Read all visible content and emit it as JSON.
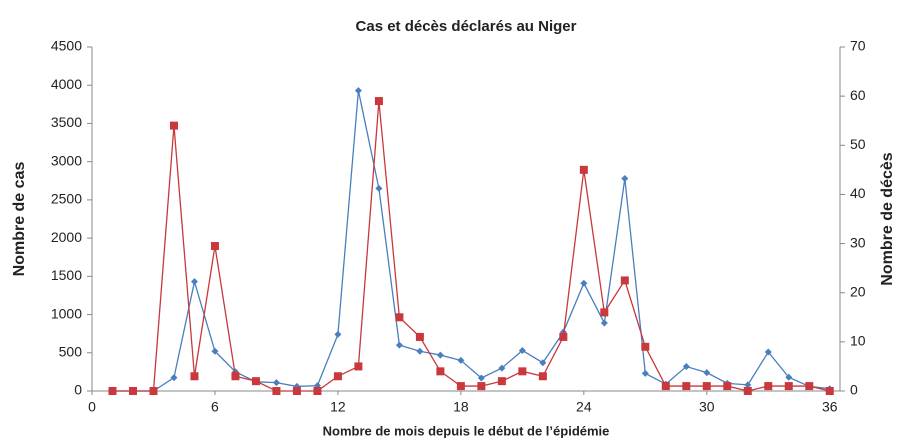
{
  "chart_data": {
    "type": "line",
    "title": "Cas et décès déclarés au Niger",
    "xlabel": "Nombre de mois depuis le début de l’épidémie",
    "ylabel": "Nombre de cas",
    "y2label": "Nombre de décès",
    "x": [
      1,
      2,
      3,
      4,
      5,
      6,
      7,
      8,
      9,
      10,
      11,
      12,
      13,
      14,
      15,
      16,
      17,
      18,
      19,
      20,
      21,
      22,
      23,
      24,
      25,
      26,
      27,
      28,
      29,
      30,
      31,
      32,
      33,
      34,
      35,
      36
    ],
    "series": [
      {
        "color": "#4a7ebf",
        "marker": "diamond",
        "axis": "y",
        "values": [
          0,
          0,
          0,
          175,
          1430,
          520,
          250,
          120,
          110,
          60,
          70,
          740,
          3930,
          2650,
          600,
          520,
          470,
          400,
          170,
          300,
          530,
          370,
          770,
          1410,
          890,
          2780,
          230,
          90,
          320,
          240,
          100,
          80,
          510,
          180,
          60,
          30
        ]
      },
      {
        "color": "#c8383c",
        "marker": "square",
        "axis": "y2",
        "values": [
          0,
          0,
          0,
          54,
          3,
          29.5,
          3,
          2,
          0,
          0,
          0,
          3,
          5,
          59,
          15,
          11,
          4,
          1,
          1,
          2,
          4,
          3,
          11,
          45,
          16,
          22.5,
          9,
          1,
          1,
          1,
          1,
          0,
          1,
          1,
          1,
          0
        ]
      }
    ],
    "xlim": [
      0,
      36.5
    ],
    "xticks": [
      0,
      6,
      12,
      18,
      24,
      30,
      36
    ],
    "ylim": [
      0,
      4500
    ],
    "yticks": [
      0,
      500,
      1000,
      1500,
      2000,
      2500,
      3000,
      3500,
      4000,
      4500
    ],
    "y2lim": [
      0,
      70
    ],
    "y2ticks": [
      0,
      10,
      20,
      30,
      40,
      50,
      60,
      70
    ],
    "grid": false
  }
}
